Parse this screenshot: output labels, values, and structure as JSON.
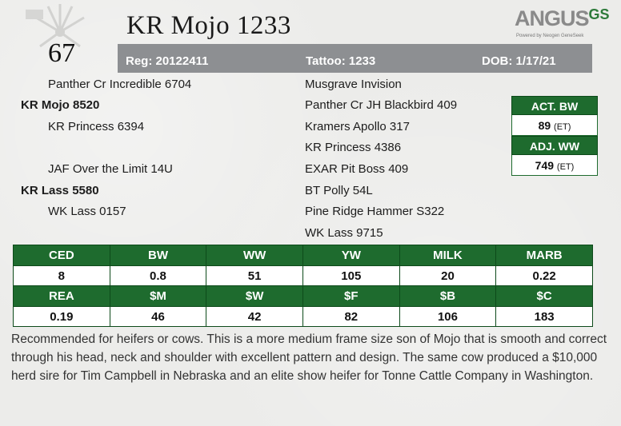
{
  "lot_number": "67",
  "animal_name": "KR Mojo 1233",
  "logo": {
    "main": "ANGUS",
    "suffix": "GS",
    "tagline": "Powered by Neogen GeneSeek"
  },
  "info_bar": {
    "reg": "Reg: 20122411",
    "tattoo": "Tattoo: 1233",
    "dob": "DOB: 1/17/21"
  },
  "pedigree": {
    "sire_sire": "Panther Cr Incredible 6704",
    "sire": "KR Mojo 8520",
    "sire_dam": "KR Princess 6394",
    "dam_sire": "JAF Over the Limit 14U",
    "dam": "KR Lass 5580",
    "dam_dam": "WK Lass 0157",
    "right": [
      "Musgrave Invision",
      "Panther Cr JH Blackbird 409",
      "Kramers Apollo 317",
      "KR Princess 4386",
      "EXAR Pit Boss 409",
      "BT Polly 54L",
      "Pine Ridge Hammer S322",
      "WK Lass 9715"
    ]
  },
  "weights": {
    "act_bw_label": "ACT. BW",
    "act_bw_value": "89",
    "act_bw_note": "(ET)",
    "adj_ww_label": "ADJ. WW",
    "adj_ww_value": "749",
    "adj_ww_note": "(ET)"
  },
  "epd": {
    "row1_headers": [
      "CED",
      "BW",
      "WW",
      "YW",
      "MILK",
      "MARB"
    ],
    "row1_values": [
      "8",
      "0.8",
      "51",
      "105",
      "20",
      "0.22"
    ],
    "row2_headers": [
      "REA",
      "$M",
      "$W",
      "$F",
      "$B",
      "$C"
    ],
    "row2_values": [
      "0.19",
      "46",
      "42",
      "82",
      "106",
      "183"
    ]
  },
  "description": "Recommended for heifers or cows. This is a more medium frame size son of Mojo that is smooth and correct through his head, neck and shoulder with excellent pattern and design. The same cow produced a $10,000 herd sire for Tim Campbell in Nebraska and an elite show heifer for Tonne Cattle Company in Washington.",
  "colors": {
    "green": "#1e6b2e",
    "bar_gray": "#8d8f92"
  }
}
